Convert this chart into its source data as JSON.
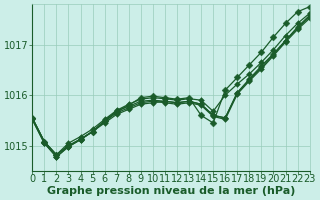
{
  "bg_color": "#cceee8",
  "grid_color": "#99ccbb",
  "line_color": "#1a5c2a",
  "marker_color": "#1a5c2a",
  "xlabel": "Graphe pression niveau de la mer (hPa)",
  "xlabel_color": "#1a5c2a",
  "ylabel_color": "#1a5c2a",
  "xlim": [
    0,
    23
  ],
  "ylim": [
    1014.5,
    1017.8
  ],
  "yticks": [
    1015,
    1016,
    1017
  ],
  "xticks": [
    0,
    1,
    2,
    3,
    4,
    5,
    6,
    7,
    8,
    9,
    10,
    11,
    12,
    13,
    14,
    15,
    16,
    17,
    18,
    19,
    20,
    21,
    22,
    23
  ],
  "series": [
    [
      1015.55,
      1015.08,
      1014.82,
      1015.0,
      1015.13,
      1015.28,
      1015.45,
      1015.62,
      1015.72,
      1015.82,
      1015.85,
      1015.88,
      1015.85,
      1015.88,
      1015.82,
      1015.6,
      1015.55,
      1016.05,
      1016.32,
      1016.58,
      1016.82,
      1017.08,
      1017.35,
      1017.58
    ],
    [
      1015.55,
      1015.08,
      1014.82,
      1015.05,
      1015.18,
      1015.33,
      1015.52,
      1015.7,
      1015.82,
      1015.92,
      1015.95,
      1015.93,
      1015.9,
      1015.93,
      1015.9,
      1015.68,
      1016.0,
      1016.22,
      1016.42,
      1016.65,
      1016.9,
      1017.18,
      1017.42,
      1017.62
    ],
    [
      1015.52,
      1015.05,
      1014.78,
      1014.98,
      1015.12,
      1015.28,
      1015.48,
      1015.65,
      1015.75,
      1015.85,
      1015.88,
      1015.85,
      1015.82,
      1015.85,
      1015.8,
      1015.58,
      1015.52,
      1016.02,
      1016.28,
      1016.52,
      1016.78,
      1017.05,
      1017.3,
      1017.52
    ],
    [
      1015.52,
      1015.05,
      1014.78,
      1014.98,
      1015.12,
      1015.28,
      1015.5,
      1015.68,
      1015.78,
      1015.88,
      1015.9,
      1015.88,
      1015.85,
      1015.88,
      1015.82,
      1015.6,
      1015.55,
      1016.05,
      1016.3,
      1016.55,
      1016.8,
      1017.08,
      1017.33,
      1017.55
    ]
  ],
  "divergent_series": {
    "values": [
      1015.55,
      1015.08,
      1014.82,
      1015.0,
      1015.13,
      1015.28,
      1015.48,
      1015.68,
      1015.8,
      1015.95,
      1015.98,
      1015.95,
      1015.92,
      1015.95,
      1015.6,
      1015.45,
      1016.1,
      1016.35,
      1016.6,
      1016.85,
      1017.15,
      1017.42,
      1017.65,
      1017.75
    ],
    "marker": "D"
  },
  "marker_size": 3,
  "font_size_ticks": 7,
  "font_size_xlabel": 8,
  "linewidth": 0.9
}
